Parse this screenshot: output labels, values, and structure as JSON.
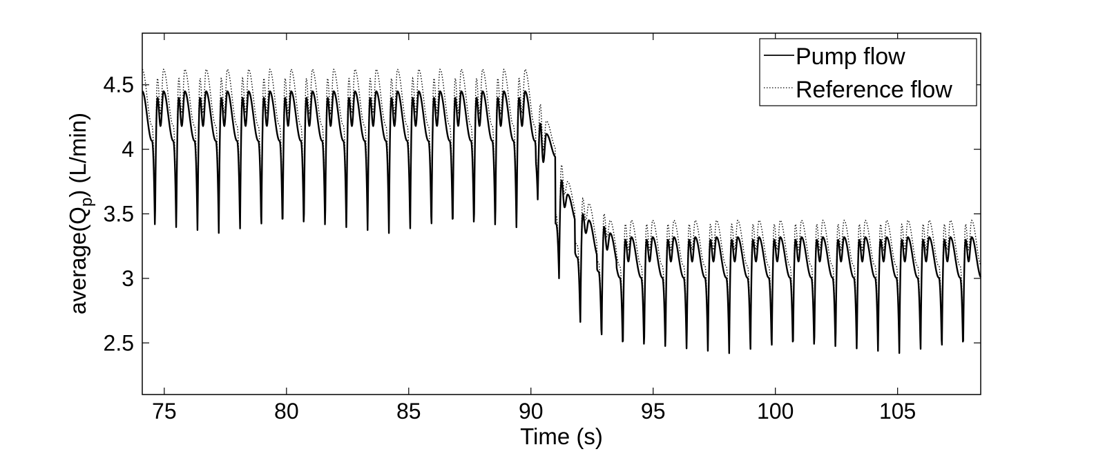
{
  "chart_data": {
    "type": "line",
    "title": "",
    "xlabel": "Time (s)",
    "ylabel_parts": {
      "pre": "average(Q",
      "sub": "p",
      "post": ") (L/min)"
    },
    "xlim": [
      74.1,
      108.4
    ],
    "ylim": [
      2.1,
      4.9
    ],
    "xticks": [
      75,
      80,
      85,
      90,
      95,
      100,
      105
    ],
    "xtick_labels": [
      "75",
      "80",
      "85",
      "90",
      "95",
      "100",
      "105"
    ],
    "yticks": [
      2.5,
      3,
      3.5,
      4,
      4.5
    ],
    "ytick_labels": [
      "2.5",
      "3",
      "3.5",
      "4",
      "4.5"
    ],
    "grid": false,
    "legend_position": "top-right",
    "beat_period_s": 0.87,
    "series": [
      {
        "name": "Pump flow",
        "style": "solid",
        "color": "#000000",
        "segments": [
          {
            "x_range": [
              74.1,
              90.2
            ],
            "trough": 3.35,
            "peak1": 4.4,
            "dip": 4.18,
            "peak2": 4.45
          },
          {
            "x_range": [
              90.2,
              91.0
            ],
            "trough": 3.6,
            "peak1": 4.2,
            "dip": 3.9,
            "peak2": 4.12
          },
          {
            "x_range": [
              91.0,
              91.8
            ],
            "trough": 3.0,
            "peak1": 3.76,
            "dip": 3.55,
            "peak2": 3.65
          },
          {
            "x_range": [
              91.8,
              92.7
            ],
            "trough": 2.63,
            "peak1": 3.5,
            "dip": 3.35,
            "peak2": 3.45
          },
          {
            "x_range": [
              92.7,
              93.5
            ],
            "trough": 2.5,
            "peak1": 3.4,
            "dip": 3.22,
            "peak2": 3.35
          },
          {
            "x_range": [
              93.5,
              108.4
            ],
            "trough": 2.42,
            "peak1": 3.3,
            "dip": 3.13,
            "peak2": 3.32
          }
        ]
      },
      {
        "name": "Reference flow",
        "style": "dotted",
        "color": "#000000",
        "segments": [
          {
            "x_range": [
              74.1,
              90.2
            ],
            "trough": 3.37,
            "peak1": 4.55,
            "dip": 4.28,
            "peak2": 4.62
          },
          {
            "x_range": [
              90.2,
              91.0
            ],
            "trough": 3.62,
            "peak1": 4.35,
            "dip": 4.0,
            "peak2": 4.22
          },
          {
            "x_range": [
              91.0,
              91.8
            ],
            "trough": 3.02,
            "peak1": 3.88,
            "dip": 3.65,
            "peak2": 3.75
          },
          {
            "x_range": [
              91.8,
              92.7
            ],
            "trough": 2.65,
            "peak1": 3.62,
            "dip": 3.45,
            "peak2": 3.58
          },
          {
            "x_range": [
              92.7,
              93.5
            ],
            "trough": 2.52,
            "peak1": 3.5,
            "dip": 3.32,
            "peak2": 3.45
          },
          {
            "x_range": [
              93.5,
              108.4
            ],
            "trough": 2.44,
            "peak1": 3.42,
            "dip": 3.22,
            "peak2": 3.45
          }
        ]
      }
    ]
  }
}
